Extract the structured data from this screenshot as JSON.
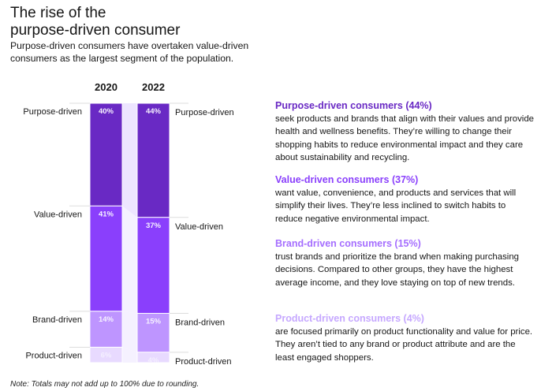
{
  "header": {
    "title_line1": "The rise of the",
    "title_line2": "purpose-driven consumer",
    "subtitle": "Purpose-driven consumers have overtaken value-driven consumers as the largest segment of the population."
  },
  "note": "Note: Totals may not add up to 100% due to rounding.",
  "chart_data": {
    "type": "bar",
    "stacked": true,
    "title": "",
    "xlabel": "",
    "ylabel": "",
    "categories": [
      "2020",
      "2022"
    ],
    "series": [
      {
        "name": "Purpose-driven",
        "values": [
          40,
          44
        ],
        "labels": [
          "40%",
          "44%"
        ],
        "color": "#6929c4"
      },
      {
        "name": "Value-driven",
        "values": [
          41,
          37
        ],
        "labels": [
          "41%",
          "37%"
        ],
        "color": "#8a3ffc"
      },
      {
        "name": "Brand-driven",
        "values": [
          14,
          15
        ],
        "labels": [
          "14%",
          "15%"
        ],
        "color": "#be95ff"
      },
      {
        "name": "Product-driven",
        "values": [
          6,
          4
        ],
        "labels": [
          "6%",
          "4%"
        ],
        "color": "#e8daff"
      }
    ],
    "left_labels": [
      "Purpose-driven",
      "Value-driven",
      "Brand-driven",
      "Product-driven"
    ],
    "right_labels": [
      "Purpose-driven",
      "Value-driven",
      "Brand-driven",
      "Product-driven"
    ],
    "connector_color": "#ede5ff"
  },
  "descriptions": [
    {
      "heading": "Purpose-driven consumers (44%)",
      "color": "#6929c4",
      "body": "seek products and brands that align with their values and provide health and wellness benefits. They’re willing to change their shopping habits to reduce environmental impact and they care about sustainability and recycling."
    },
    {
      "heading": "Value-driven consumers (37%)",
      "color": "#8a3ffc",
      "body": "want value, convenience, and products and services that will simplify their lives. They’re less inclined to switch habits to reduce negative environmental impact."
    },
    {
      "heading": "Brand-driven consumers (15%)",
      "color": "#a56eff",
      "body": "trust brands and prioritize the brand when making purchasing decisions. Compared to other groups, they have the highest average income, and they love staying on top of new trends."
    },
    {
      "heading": "Product-driven consumers (4%)",
      "color": "#c6a8ff",
      "body": "are focused primarily on product functionality and value for price. They aren’t tied to any brand or product attribute and are the least engaged shoppers."
    }
  ]
}
